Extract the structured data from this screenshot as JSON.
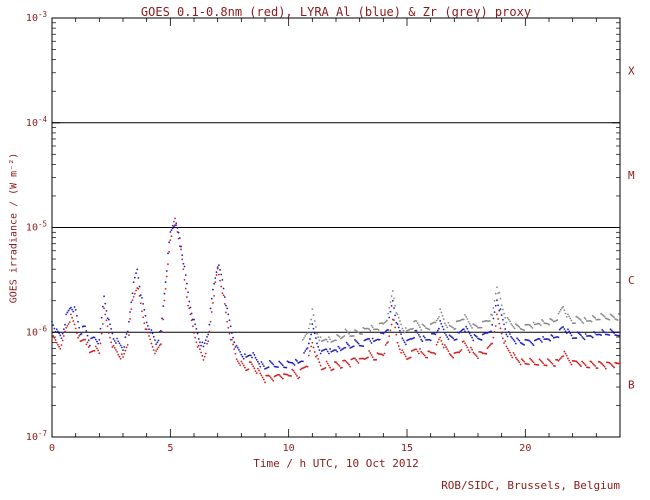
{
  "footer": "ROB/SIDC, Brussels, Belgium",
  "chart_data": {
    "type": "scatter",
    "title": "GOES 0.1-0.8nm (red), LYRA Al (blue) & Zr (grey) proxy",
    "xlabel": "Time / h UTC, 10 Oct 2012",
    "ylabel": "GOES irradiance / (W m⁻²)",
    "x_range": [
      0,
      24
    ],
    "x_major_ticks": [
      0,
      5,
      10,
      15,
      20
    ],
    "y_scale": "log",
    "y_range": [
      1e-07,
      0.001
    ],
    "y_tick_base": "10",
    "y_tick_exponents": [
      -7,
      -6,
      -5,
      -4,
      -3
    ],
    "class_lines": [
      1e-06,
      1e-05,
      0.0001
    ],
    "class_labels": [
      {
        "label": "X",
        "value": 0.000316
      },
      {
        "label": "M",
        "value": 3.16e-05
      },
      {
        "label": "C",
        "value": 3.16e-06
      },
      {
        "label": "B",
        "value": 3.16e-07
      }
    ],
    "colors": {
      "goes": "#d02020",
      "lyra_al": "#2020c0",
      "lyra_zr": "#8a8a8a",
      "text": "#8b1a1a",
      "axis": "#000000"
    },
    "series": [
      {
        "name": "GOES 0.1-0.8nm",
        "color_key": "goes",
        "x_start": 0.0,
        "x_step": 0.2,
        "log10_y": [
          -6.05,
          -6.1,
          -6.15,
          -5.95,
          -5.85,
          -5.95,
          -6.1,
          -6.05,
          -6.2,
          -6.15,
          -6.2,
          -5.8,
          -6.0,
          -6.15,
          -6.2,
          -6.25,
          -6.1,
          -5.7,
          -5.55,
          -5.8,
          -6.0,
          -6.1,
          -6.2,
          -6.1,
          -5.6,
          -5.1,
          -4.92,
          -5.15,
          -5.5,
          -5.8,
          -6.0,
          -6.15,
          -6.25,
          -6.1,
          -5.7,
          -5.4,
          -5.6,
          -5.9,
          -6.1,
          -6.25,
          -6.3,
          -6.35,
          -6.3,
          -6.35,
          -6.4,
          -6.45,
          -6.42,
          -6.45,
          -6.4,
          -6.42,
          -6.4,
          -6.38,
          -6.42,
          -6.35,
          -6.3,
          -6.1,
          -6.25,
          -6.35,
          -6.3,
          -6.35,
          -6.3,
          -6.32,
          -6.28,
          -6.3,
          -6.25,
          -6.28,
          -6.25,
          -6.2,
          -6.25,
          -6.22,
          -6.2,
          -6.1,
          -5.85,
          -6.1,
          -6.2,
          -6.25,
          -6.2,
          -6.15,
          -6.2,
          -6.22,
          -6.2,
          -6.18,
          -6.05,
          -6.15,
          -6.2,
          -6.22,
          -6.18,
          -6.1,
          -6.15,
          -6.2,
          -6.22,
          -6.2,
          -6.18,
          -6.1,
          -5.85,
          -6.0,
          -6.15,
          -6.2,
          -6.25,
          -6.28,
          -6.3,
          -6.28,
          -6.3,
          -6.28,
          -6.3,
          -6.28,
          -6.3,
          -6.28,
          -6.2,
          -6.25,
          -6.3,
          -6.28,
          -6.3,
          -6.32,
          -6.3,
          -6.32,
          -6.3,
          -6.32,
          -6.3,
          -6.32,
          -6.3
        ]
      },
      {
        "name": "LYRA Al",
        "color_key": "lyra_al",
        "x_start": 0.0,
        "x_step": 0.2,
        "log10_y": [
          -5.9,
          -6.0,
          -6.05,
          -5.85,
          -5.75,
          -5.8,
          -6.0,
          -5.95,
          -6.1,
          -6.05,
          -6.1,
          -5.65,
          -5.9,
          -6.05,
          -6.1,
          -6.15,
          -6.0,
          -5.6,
          -5.4,
          -5.7,
          -5.9,
          -6.0,
          -6.1,
          -6.0,
          -5.5,
          -5.05,
          -4.95,
          -5.1,
          -5.4,
          -5.7,
          -5.9,
          -6.05,
          -6.15,
          -6.0,
          -5.6,
          -5.35,
          -5.5,
          -5.8,
          -6.0,
          -6.15,
          -6.2,
          -6.25,
          -6.2,
          -6.25,
          -6.3,
          -6.35,
          -6.3,
          -6.32,
          -6.3,
          -6.32,
          -6.3,
          -6.28,
          -6.3,
          -6.25,
          -6.15,
          -5.95,
          -6.1,
          -6.2,
          -6.15,
          -6.2,
          -6.15,
          -6.18,
          -6.12,
          -6.15,
          -6.1,
          -6.12,
          -6.1,
          -6.05,
          -6.1,
          -6.05,
          -6.02,
          -5.95,
          -5.7,
          -5.95,
          -6.05,
          -6.1,
          -6.05,
          -6.0,
          -6.05,
          -6.08,
          -6.05,
          -6.02,
          -5.92,
          -6.0,
          -6.05,
          -6.06,
          -6.02,
          -5.95,
          -6.0,
          -6.05,
          -6.06,
          -6.05,
          -6.0,
          -5.95,
          -5.68,
          -5.85,
          -6.0,
          -6.05,
          -6.08,
          -6.1,
          -6.1,
          -6.08,
          -6.1,
          -6.05,
          -6.08,
          -6.05,
          -6.06,
          -6.02,
          -5.95,
          -6.0,
          -6.05,
          -6.02,
          -6.03,
          -6.05,
          -6.02,
          -6.03,
          -6.0,
          -6.02,
          -6.0,
          -6.02,
          -6.0
        ]
      },
      {
        "name": "LYRA Zr proxy",
        "color_key": "lyra_zr",
        "x_start": 10.6,
        "x_step": 0.2,
        "log10_y": [
          -6.1,
          -6.0,
          -5.8,
          -6.0,
          -6.1,
          -6.05,
          -6.1,
          -6.05,
          -6.06,
          -6.0,
          -6.03,
          -6.0,
          -6.0,
          -5.98,
          -5.95,
          -5.98,
          -5.95,
          -5.92,
          -5.85,
          -5.6,
          -5.85,
          -5.95,
          -6.0,
          -5.95,
          -5.9,
          -5.95,
          -5.96,
          -5.95,
          -5.9,
          -5.8,
          -5.9,
          -5.95,
          -5.95,
          -5.9,
          -5.85,
          -5.9,
          -5.95,
          -5.95,
          -5.92,
          -5.88,
          -5.85,
          -5.55,
          -5.75,
          -5.88,
          -5.92,
          -5.95,
          -5.96,
          -5.95,
          -5.92,
          -5.94,
          -5.9,
          -5.92,
          -5.9,
          -5.9,
          -5.85,
          -5.75,
          -5.85,
          -5.9,
          -5.87,
          -5.88,
          -5.9,
          -5.87,
          -5.88,
          -5.85,
          -5.86,
          -5.85,
          -5.86,
          -5.85
        ]
      }
    ]
  }
}
